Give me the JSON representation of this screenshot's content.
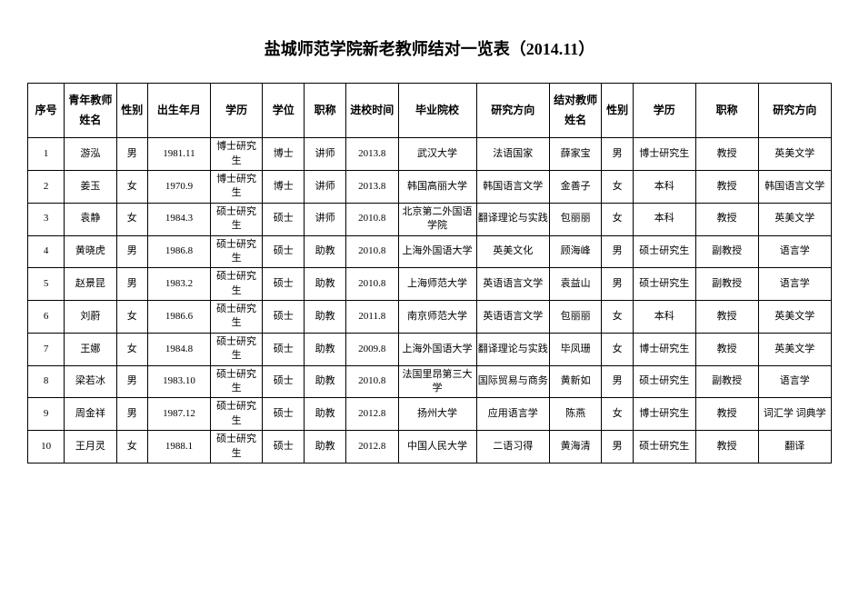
{
  "title": "盐城师范学院新老教师结对一览表（2014.11）",
  "table": {
    "columns": [
      "序号",
      "青年教师姓名",
      "性别",
      "出生年月",
      "学历",
      "学位",
      "职称",
      "进校时间",
      "毕业院校",
      "研究方向",
      "结对教师姓名",
      "性别",
      "学历",
      "职称",
      "研究方向"
    ],
    "col_classes": [
      "col-seq",
      "col-name",
      "col-gender",
      "col-birth",
      "col-edu",
      "col-degree",
      "col-title",
      "col-enter",
      "col-school",
      "col-research",
      "col-mentor",
      "col-gender2",
      "col-edu2",
      "col-title2",
      "col-research2"
    ],
    "rows": [
      [
        "1",
        "游泓",
        "男",
        "1981.11",
        "博士研究生",
        "博士",
        "讲师",
        "2013.8",
        "武汉大学",
        "法语国家",
        "薛家宝",
        "男",
        "博士研究生",
        "教授",
        "英美文学"
      ],
      [
        "2",
        "姜玉",
        "女",
        "1970.9",
        "博士研究生",
        "博士",
        "讲师",
        "2013.8",
        "韩国高丽大学",
        "韩国语言文学",
        "金善子",
        "女",
        "本科",
        "教授",
        "韩国语言文学"
      ],
      [
        "3",
        "袁静",
        "女",
        "1984.3",
        "硕士研究生",
        "硕士",
        "讲师",
        "2010.8",
        "北京第二外国语学院",
        "翻译理论与实践",
        "包丽丽",
        "女",
        "本科",
        "教授",
        "英美文学"
      ],
      [
        "4",
        "黄晓虎",
        "男",
        "1986.8",
        "硕士研究生",
        "硕士",
        "助教",
        "2010.8",
        "上海外国语大学",
        "英美文化",
        "顾海峰",
        "男",
        "硕士研究生",
        "副教授",
        "语言学"
      ],
      [
        "5",
        "赵景昆",
        "男",
        "1983.2",
        "硕士研究生",
        "硕士",
        "助教",
        "2010.8",
        "上海师范大学",
        "英语语言文学",
        "袁益山",
        "男",
        "硕士研究生",
        "副教授",
        "语言学"
      ],
      [
        "6",
        "刘蔚",
        "女",
        "1986.6",
        "硕士研究生",
        "硕士",
        "助教",
        "2011.8",
        "南京师范大学",
        "英语语言文学",
        "包丽丽",
        "女",
        "本科",
        "教授",
        "英美文学"
      ],
      [
        "7",
        "王娜",
        "女",
        "1984.8",
        "硕士研究生",
        "硕士",
        "助教",
        "2009.8",
        "上海外国语大学",
        "翻译理论与实践",
        "毕凤珊",
        "女",
        "博士研究生",
        "教授",
        "英美文学"
      ],
      [
        "8",
        "梁若冰",
        "男",
        "1983.10",
        "硕士研究生",
        "硕士",
        "助教",
        "2010.8",
        "法国里昂第三大学",
        "国际贸易与商务",
        "黄新如",
        "男",
        "硕士研究生",
        "副教授",
        "语言学"
      ],
      [
        "9",
        "周金祥",
        "男",
        "1987.12",
        "硕士研究生",
        "硕士",
        "助教",
        "2012.8",
        "扬州大学",
        "应用语言学",
        "陈燕",
        "女",
        "博士研究生",
        "教授",
        "词汇学 词典学"
      ],
      [
        "10",
        "王月灵",
        "女",
        "1988.1",
        "硕士研究生",
        "硕士",
        "助教",
        "2012.8",
        "中国人民大学",
        "二语习得",
        "黄海清",
        "男",
        "硕士研究生",
        "教授",
        "翻译"
      ]
    ]
  },
  "styling": {
    "background_color": "#ffffff",
    "border_color": "#000000",
    "text_color": "#000000",
    "title_fontsize": 18,
    "header_fontsize": 12,
    "cell_fontsize": 11,
    "font_family": "SimSun"
  }
}
